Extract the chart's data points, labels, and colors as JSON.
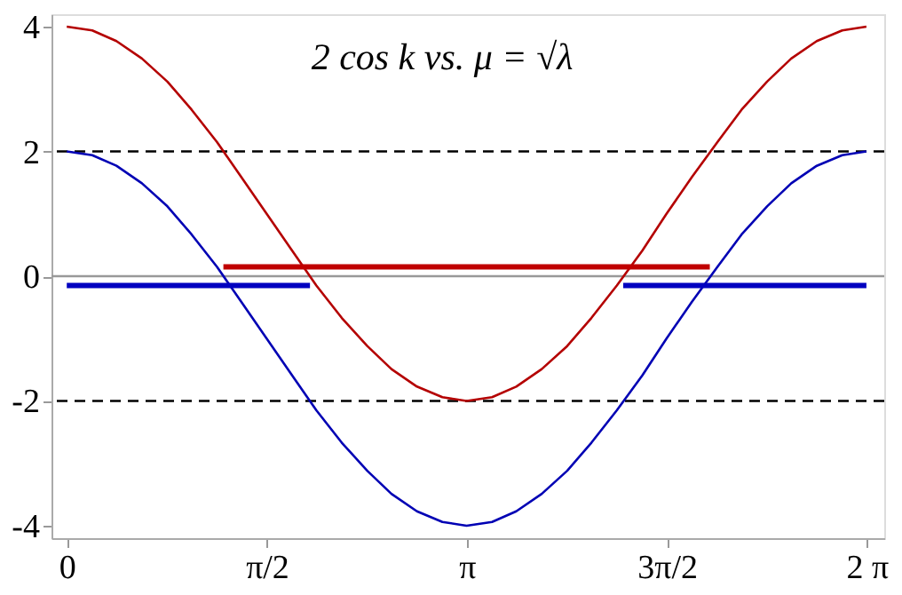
{
  "chart_data": {
    "type": "line",
    "title": "2 cos k   vs.   μ = √λ",
    "xlim": [
      -0.12,
      6.42
    ],
    "ylim": [
      -4.2,
      4.2
    ],
    "xticks": [
      0,
      {
        "value": 1.5708,
        "label": "π/2"
      },
      {
        "value": 3.1416,
        "label": "π"
      },
      {
        "value": 4.7124,
        "label": "3π/2"
      },
      {
        "value": 6.2832,
        "label": "2 π"
      }
    ],
    "yticks": [
      -4,
      -2,
      0,
      2,
      4
    ],
    "grid": false,
    "line_style": "solid",
    "marker": "none",
    "series": [
      {
        "color": "#b40000",
        "x": [
          0,
          0.2,
          0.39,
          0.59,
          0.79,
          0.98,
          1.18,
          1.37,
          1.57,
          1.77,
          1.96,
          2.16,
          2.36,
          2.55,
          2.75,
          2.95,
          3.14,
          3.34,
          3.53,
          3.73,
          3.93,
          4.12,
          4.32,
          4.52,
          4.71,
          4.91,
          5.11,
          5.3,
          5.5,
          5.69,
          5.89,
          6.09,
          6.28
        ],
        "values": [
          4.0,
          3.94,
          3.77,
          3.49,
          3.12,
          2.67,
          2.15,
          1.59,
          1.0,
          0.41,
          -0.15,
          -0.67,
          -1.12,
          -1.49,
          -1.77,
          -1.94,
          -2.0,
          -1.94,
          -1.77,
          -1.49,
          -1.12,
          -0.67,
          -0.15,
          0.41,
          1.0,
          1.59,
          2.15,
          2.67,
          3.12,
          3.49,
          3.77,
          3.94,
          4.0
        ]
      },
      {
        "color": "#0000b4",
        "x": [
          0,
          0.2,
          0.39,
          0.59,
          0.79,
          0.98,
          1.18,
          1.37,
          1.57,
          1.77,
          1.96,
          2.16,
          2.36,
          2.55,
          2.75,
          2.95,
          3.14,
          3.34,
          3.53,
          3.73,
          3.93,
          4.12,
          4.32,
          4.52,
          4.71,
          4.91,
          5.11,
          5.3,
          5.5,
          5.69,
          5.89,
          6.09,
          6.28
        ],
        "values": [
          2.0,
          1.94,
          1.77,
          1.49,
          1.12,
          0.67,
          0.15,
          -0.41,
          -1.0,
          -1.59,
          -2.15,
          -2.67,
          -3.12,
          -3.49,
          -3.77,
          -3.94,
          -4.0,
          -3.94,
          -3.77,
          -3.49,
          -3.12,
          -2.67,
          -2.15,
          -1.59,
          -1.0,
          -0.41,
          0.15,
          0.67,
          1.12,
          1.49,
          1.77,
          1.94,
          2.0
        ]
      },
      {
        "color": "#c00000",
        "x": [
          1.23,
          5.05
        ],
        "values": [
          0.15,
          0.15
        ]
      },
      {
        "color": "#0000c0",
        "x": [
          0,
          1.91
        ],
        "values": [
          -0.15,
          -0.15
        ]
      },
      {
        "color": "#0000c0",
        "x": [
          4.37,
          6.28
        ],
        "values": [
          -0.15,
          -0.15
        ]
      }
    ],
    "ref_lines": [
      {
        "axis": "y",
        "value": 2,
        "color": "#000000",
        "line_style": "dashed"
      },
      {
        "axis": "y",
        "value": -2,
        "color": "#000000",
        "line_style": "dashed"
      },
      {
        "axis": "y",
        "value": 0,
        "color": "#999999",
        "line_style": "solid"
      }
    ]
  }
}
